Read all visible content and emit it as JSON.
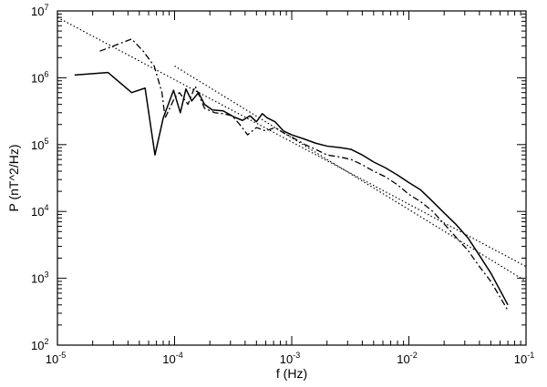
{
  "chart_data": {
    "type": "line",
    "xscale": "log",
    "yscale": "log",
    "xlim": [
      1e-05,
      0.1
    ],
    "ylim": [
      100,
      10000000
    ],
    "grid": false,
    "xlabel": "f (Hz)",
    "ylabel": "P (nT^2/Hz)",
    "x_ticks": [
      {
        "base": "10",
        "exp": "-5",
        "value": 1e-05
      },
      {
        "base": "10",
        "exp": "-4",
        "value": 0.0001
      },
      {
        "base": "10",
        "exp": "-3",
        "value": 0.001
      },
      {
        "base": "10",
        "exp": "-2",
        "value": 0.01
      },
      {
        "base": "10",
        "exp": "-1",
        "value": 0.1
      }
    ],
    "y_ticks": [
      {
        "base": "10",
        "exp": "2",
        "value": 100
      },
      {
        "base": "10",
        "exp": "3",
        "value": 1000
      },
      {
        "base": "10",
        "exp": "4",
        "value": 10000
      },
      {
        "base": "10",
        "exp": "5",
        "value": 100000
      },
      {
        "base": "10",
        "exp": "6",
        "value": 1000000
      },
      {
        "base": "10",
        "exp": "7",
        "value": 10000000
      }
    ],
    "series": [
      {
        "line_style": "solid",
        "x": [
          1.4e-05,
          2.7e-05,
          4.3e-05,
          5.6e-05,
          6.8e-05,
          8e-05,
          9.8e-05,
          0.000112,
          0.000125,
          0.00014,
          0.00016,
          0.00018,
          0.00021,
          0.00026,
          0.00032,
          0.00038,
          0.00044,
          0.0005,
          0.00056,
          0.00062,
          0.00072,
          0.00085,
          0.001,
          0.0013,
          0.0016,
          0.002,
          0.0026,
          0.0032,
          0.004,
          0.005,
          0.0063,
          0.008,
          0.01,
          0.0126,
          0.016,
          0.02,
          0.025,
          0.032,
          0.04,
          0.05,
          0.07
        ],
        "y": [
          1100000,
          1200000,
          600000,
          700000,
          70000,
          250000,
          650000,
          300000,
          680000,
          450000,
          600000,
          400000,
          330000,
          320000,
          260000,
          230000,
          270000,
          220000,
          290000,
          250000,
          220000,
          160000,
          140000,
          120000,
          105000,
          95000,
          90000,
          85000,
          70000,
          55000,
          45000,
          35000,
          27000,
          21000,
          14000,
          9500,
          6500,
          4000,
          2200,
          1200,
          400
        ]
      },
      {
        "line_style": "dash-dot",
        "x": [
          2.3e-05,
          4.3e-05,
          5.4e-05,
          6.7e-05,
          7.8e-05,
          8.3e-05,
          0.0001,
          0.00011,
          0.00013,
          0.00015,
          0.00018,
          0.00022,
          0.00026,
          0.00031,
          0.00036,
          0.00042,
          0.0005,
          0.0006,
          0.00072,
          0.00085,
          0.001,
          0.0013,
          0.0016,
          0.002,
          0.0026,
          0.0032,
          0.004,
          0.005,
          0.0063,
          0.008,
          0.01,
          0.0126,
          0.016,
          0.02,
          0.025,
          0.032,
          0.04,
          0.05,
          0.07
        ],
        "y": [
          2500000,
          3800000,
          2500000,
          1500000,
          600000,
          250000,
          500000,
          600000,
          400000,
          750000,
          350000,
          300000,
          290000,
          270000,
          200000,
          140000,
          180000,
          160000,
          180000,
          150000,
          130000,
          100000,
          85000,
          70000,
          65000,
          60000,
          50000,
          40000,
          33000,
          25000,
          18000,
          14000,
          10000,
          6500,
          4200,
          2600,
          1500,
          900,
          330
        ]
      },
      {
        "line_style": "dotted",
        "x": [
          1e-05,
          0.1
        ],
        "y": [
          8000000,
          1500
        ]
      },
      {
        "line_style": "dotted",
        "x": [
          0.0001,
          0.1
        ],
        "y": [
          1500000,
          900
        ]
      }
    ]
  }
}
